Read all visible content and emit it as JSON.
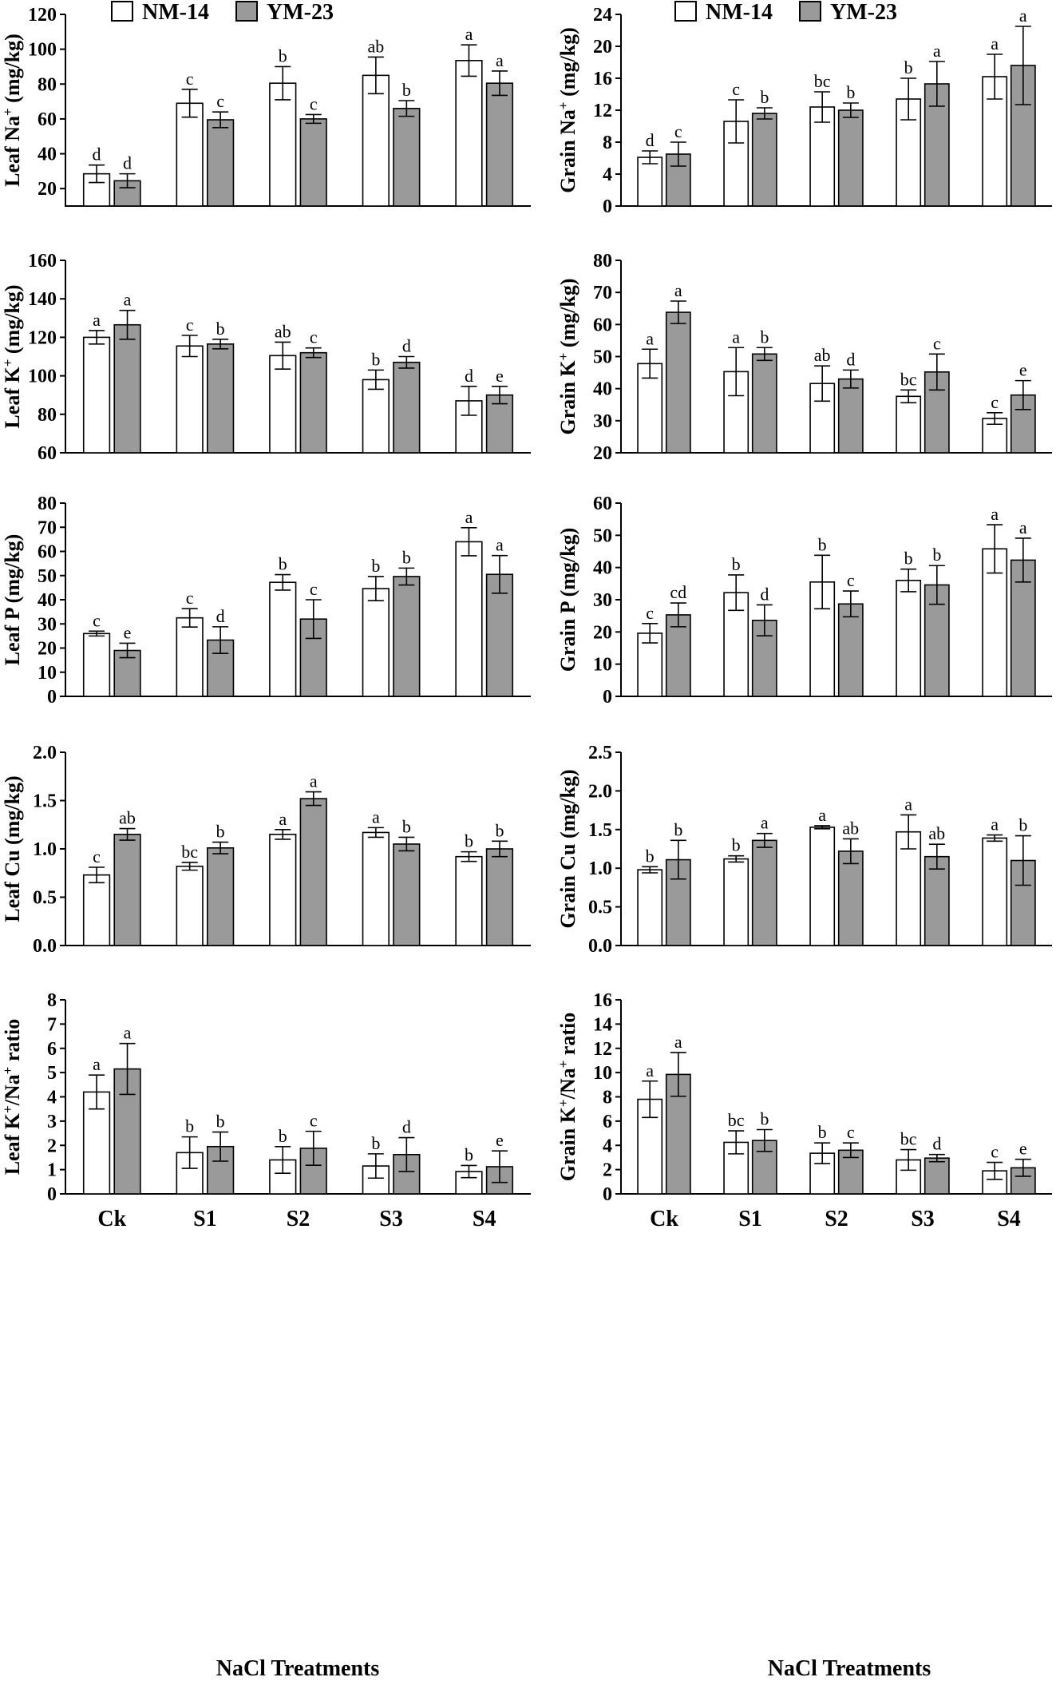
{
  "colors": {
    "nm14": "#ffffff",
    "ym23": "#9a9a9a",
    "stroke": "#000000"
  },
  "legend": [
    "NM-14",
    "YM-23"
  ],
  "xlabel": "NaCl Treatments",
  "chart_data": [
    {
      "type": "bar",
      "id": "leaf-na",
      "ylabel": "Leaf Na+ (mg/kg)",
      "ylabel_parts": [
        "Leaf Na",
        "+",
        " (mg/kg)"
      ],
      "categories": [
        "Ck",
        "S1",
        "S2",
        "S3",
        "S4"
      ],
      "ylim": [
        10,
        120
      ],
      "yticks": [
        "20",
        "40",
        "60",
        "80",
        "100",
        "120"
      ],
      "series": [
        {
          "name": "NM-14",
          "values": [
            28.5,
            69,
            80.5,
            85,
            93.5
          ],
          "err": [
            5,
            8,
            9.5,
            10.5,
            9
          ],
          "sig": [
            "d",
            "c",
            "b",
            "ab",
            "a"
          ]
        },
        {
          "name": "YM-23",
          "values": [
            24.5,
            59.5,
            60,
            66,
            80.5
          ],
          "err": [
            4,
            4.5,
            2.5,
            4.5,
            7
          ],
          "sig": [
            "d",
            "c",
            "c",
            "b",
            "a"
          ]
        }
      ]
    },
    {
      "type": "bar",
      "id": "grain-na",
      "ylabel": "Grain Na+ (mg/kg)",
      "ylabel_parts": [
        "Grain Na",
        "+",
        " (mg/kg)"
      ],
      "categories": [
        "Ck",
        "S1",
        "S2",
        "S3",
        "S4"
      ],
      "ylim": [
        0,
        24
      ],
      "yticks": [
        "0",
        "4",
        "8",
        "12",
        "16",
        "20",
        "24"
      ],
      "series": [
        {
          "name": "NM-14",
          "values": [
            6.1,
            10.6,
            12.4,
            13.4,
            16.2
          ],
          "err": [
            0.8,
            2.7,
            1.9,
            2.6,
            2.8
          ],
          "sig": [
            "d",
            "c",
            "bc",
            "b",
            "a"
          ]
        },
        {
          "name": "YM-23",
          "values": [
            6.5,
            11.6,
            12,
            15.3,
            17.6
          ],
          "err": [
            1.5,
            0.7,
            0.9,
            2.8,
            4.9
          ],
          "sig": [
            "c",
            "b",
            "b",
            "a",
            "a"
          ]
        }
      ]
    },
    {
      "type": "bar",
      "id": "leaf-k",
      "ylabel": "Leaf K+ (mg/kg)",
      "ylabel_parts": [
        "Leaf K",
        "+",
        " (mg/kg)"
      ],
      "categories": [
        "Ck",
        "S1",
        "S2",
        "S3",
        "S4"
      ],
      "ylim": [
        60,
        160
      ],
      "yticks": [
        "60",
        "80",
        "100",
        "120",
        "140",
        "160"
      ],
      "series": [
        {
          "name": "NM-14",
          "values": [
            120,
            115.5,
            110.5,
            98,
            87
          ],
          "err": [
            3.5,
            5.5,
            7,
            5,
            7.5
          ],
          "sig": [
            "a",
            "c",
            "ab",
            "b",
            "d"
          ]
        },
        {
          "name": "YM-23",
          "values": [
            126.5,
            116.5,
            112,
            107,
            90
          ],
          "err": [
            7.5,
            2.5,
            2.5,
            3,
            4.5
          ],
          "sig": [
            "a",
            "b",
            "c",
            "d",
            "e"
          ]
        }
      ]
    },
    {
      "type": "bar",
      "id": "grain-k",
      "ylabel": "Grain K+ (mg/kg)",
      "ylabel_parts": [
        "Grain K",
        "+",
        " (mg/kg)"
      ],
      "categories": [
        "Ck",
        "S1",
        "S2",
        "S3",
        "S4"
      ],
      "ylim": [
        20,
        80
      ],
      "yticks": [
        "20",
        "30",
        "40",
        "50",
        "60",
        "70",
        "80"
      ],
      "series": [
        {
          "name": "NM-14",
          "values": [
            47.8,
            45.3,
            41.6,
            37.6,
            30.7
          ],
          "err": [
            4.5,
            7.5,
            5.5,
            2,
            1.8
          ],
          "sig": [
            "a",
            "a",
            "ab",
            "bc",
            "c"
          ]
        },
        {
          "name": "YM-23",
          "values": [
            63.8,
            50.8,
            43,
            45.2,
            38
          ],
          "err": [
            3.5,
            2,
            2.8,
            5.6,
            4.5
          ],
          "sig": [
            "a",
            "b",
            "d",
            "c",
            "e"
          ]
        }
      ]
    },
    {
      "type": "bar",
      "id": "leaf-p",
      "ylabel": "Leaf P (mg/kg)",
      "ylabel_parts": [
        "Leaf P (mg/kg)"
      ],
      "categories": [
        "Ck",
        "S1",
        "S2",
        "S3",
        "S4"
      ],
      "ylim": [
        0,
        80
      ],
      "yticks": [
        "0",
        "10",
        "20",
        "30",
        "40",
        "50",
        "60",
        "70",
        "80"
      ],
      "series": [
        {
          "name": "NM-14",
          "values": [
            26,
            32.5,
            47.2,
            44.6,
            64
          ],
          "err": [
            1,
            3.8,
            3.2,
            5,
            5.8
          ],
          "sig": [
            "c",
            "c",
            "b",
            "b",
            "a"
          ]
        },
        {
          "name": "YM-23",
          "values": [
            19,
            23.3,
            32,
            49.6,
            50.5
          ],
          "err": [
            3,
            5.5,
            8,
            3.5,
            7.8
          ],
          "sig": [
            "e",
            "d",
            "c",
            "b",
            "a"
          ]
        }
      ]
    },
    {
      "type": "bar",
      "id": "grain-p",
      "ylabel": "Grain P (mg/kg)",
      "ylabel_parts": [
        "Grain P (mg/kg)"
      ],
      "categories": [
        "Ck",
        "S1",
        "S2",
        "S3",
        "S4"
      ],
      "ylim": [
        0,
        60
      ],
      "yticks": [
        "0",
        "10",
        "20",
        "30",
        "40",
        "50",
        "60"
      ],
      "series": [
        {
          "name": "NM-14",
          "values": [
            19.6,
            32.2,
            35.5,
            36,
            45.8
          ],
          "err": [
            3,
            5.5,
            8.3,
            3.5,
            7.5
          ],
          "sig": [
            "c",
            "b",
            "b",
            "b",
            "a"
          ]
        },
        {
          "name": "YM-23",
          "values": [
            25.3,
            23.6,
            28.7,
            34.6,
            42.3
          ],
          "err": [
            3.7,
            4.8,
            4,
            6,
            6.8
          ],
          "sig": [
            "cd",
            "d",
            "c",
            "b",
            "a"
          ]
        }
      ]
    },
    {
      "type": "bar",
      "id": "leaf-cu",
      "ylabel": "Leaf Cu (mg/kg)",
      "ylabel_parts": [
        "Leaf Cu (mg/kg)"
      ],
      "categories": [
        "Ck",
        "S1",
        "S2",
        "S3",
        "S4"
      ],
      "ylim": [
        0,
        2
      ],
      "yticks": [
        "0.0",
        "0.5",
        "1.0",
        "1.5",
        "2.0"
      ],
      "series": [
        {
          "name": "NM-14",
          "values": [
            0.73,
            0.82,
            1.15,
            1.17,
            0.92
          ],
          "err": [
            0.08,
            0.04,
            0.05,
            0.05,
            0.05
          ],
          "sig": [
            "c",
            "bc",
            "a",
            "a",
            "b"
          ]
        },
        {
          "name": "YM-23",
          "values": [
            1.15,
            1.01,
            1.52,
            1.05,
            1.0
          ],
          "err": [
            0.06,
            0.06,
            0.07,
            0.07,
            0.08
          ],
          "sig": [
            "ab",
            "b",
            "a",
            "b",
            "b"
          ]
        }
      ]
    },
    {
      "type": "bar",
      "id": "grain-cu",
      "ylabel": "Grain Cu (mg/kg)",
      "ylabel_parts": [
        "Grain Cu (mg/kg)"
      ],
      "categories": [
        "Ck",
        "S1",
        "S2",
        "S3",
        "S4"
      ],
      "ylim": [
        0,
        2.5
      ],
      "yticks": [
        "0.0",
        "0.5",
        "1.0",
        "1.5",
        "2.0",
        "2.5"
      ],
      "series": [
        {
          "name": "NM-14",
          "values": [
            0.98,
            1.12,
            1.53,
            1.47,
            1.39
          ],
          "err": [
            0.04,
            0.04,
            0.02,
            0.22,
            0.04
          ],
          "sig": [
            "b",
            "b",
            "a",
            "a",
            "a"
          ]
        },
        {
          "name": "YM-23",
          "values": [
            1.11,
            1.36,
            1.22,
            1.15,
            1.1
          ],
          "err": [
            0.25,
            0.09,
            0.16,
            0.16,
            0.32
          ],
          "sig": [
            "b",
            "a",
            "ab",
            "ab",
            "b"
          ]
        }
      ]
    },
    {
      "type": "bar",
      "id": "leaf-kna",
      "ylabel": "Leaf K+/Na+ ratio",
      "ylabel_parts": [
        "Leaf K",
        "+",
        "/Na",
        "+",
        " ratio"
      ],
      "categories": [
        "Ck",
        "S1",
        "S2",
        "S3",
        "S4"
      ],
      "ylim": [
        0,
        8
      ],
      "yticks": [
        "0",
        "1",
        "2",
        "3",
        "4",
        "5",
        "6",
        "7",
        "8"
      ],
      "series": [
        {
          "name": "NM-14",
          "values": [
            4.2,
            1.7,
            1.4,
            1.15,
            0.92
          ],
          "err": [
            0.7,
            0.65,
            0.55,
            0.5,
            0.25
          ],
          "sig": [
            "a",
            "b",
            "b",
            "b",
            "b"
          ]
        },
        {
          "name": "YM-23",
          "values": [
            5.15,
            1.95,
            1.88,
            1.62,
            1.12
          ],
          "err": [
            1.05,
            0.6,
            0.7,
            0.7,
            0.65
          ],
          "sig": [
            "a",
            "b",
            "c",
            "d",
            "e"
          ]
        }
      ]
    },
    {
      "type": "bar",
      "id": "grain-kna",
      "ylabel": "Grain K+/Na+ ratio",
      "ylabel_parts": [
        "Grain K",
        "+",
        "/Na",
        "+",
        " ratio"
      ],
      "categories": [
        "Ck",
        "S1",
        "S2",
        "S3",
        "S4"
      ],
      "ylim": [
        0,
        16
      ],
      "yticks": [
        "0",
        "2",
        "4",
        "6",
        "8",
        "10",
        "12",
        "14",
        "16"
      ],
      "series": [
        {
          "name": "NM-14",
          "values": [
            7.8,
            4.25,
            3.35,
            2.8,
            1.9
          ],
          "err": [
            1.5,
            0.95,
            0.85,
            0.85,
            0.7
          ],
          "sig": [
            "a",
            "bc",
            "b",
            "bc",
            "c"
          ]
        },
        {
          "name": "YM-23",
          "values": [
            9.85,
            4.4,
            3.6,
            2.95,
            2.15
          ],
          "err": [
            1.8,
            0.9,
            0.6,
            0.3,
            0.7
          ],
          "sig": [
            "a",
            "b",
            "c",
            "d",
            "e"
          ]
        }
      ]
    }
  ]
}
